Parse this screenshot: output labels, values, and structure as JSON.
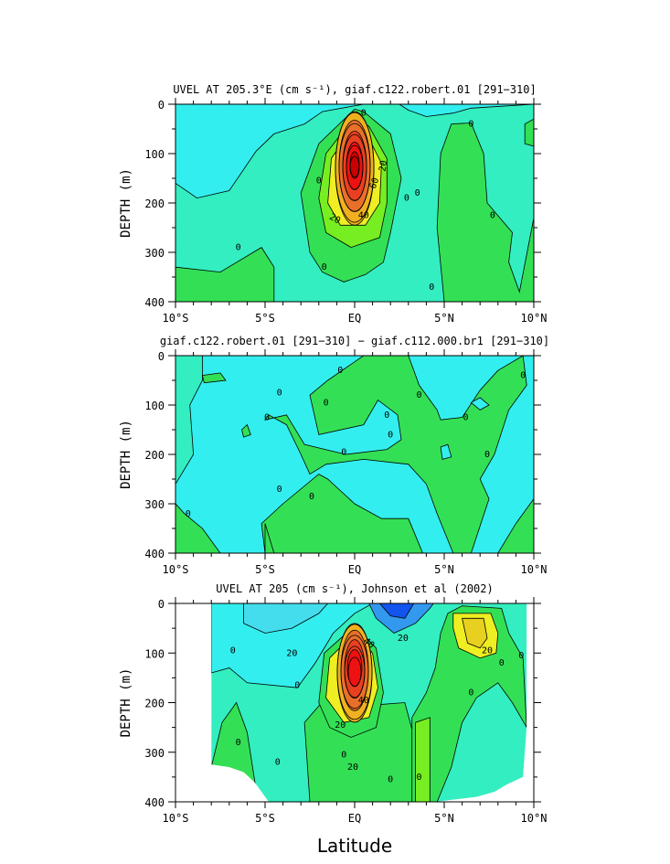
{
  "figure": {
    "xlabel": "Latitude"
  },
  "chart_data": [
    {
      "type": "heatmap",
      "title": "UVEL AT 205.3°E (cm s⁻¹), giaf.c122.robert.01 [291−310]",
      "ylabel": "DEPTH (m)",
      "xlim": [
        -10,
        10
      ],
      "ylim": [
        400,
        0
      ],
      "x_ticks": [
        "10°S",
        "5°S",
        "EQ",
        "5°N",
        "10°N"
      ],
      "y_ticks": [
        "0",
        "100",
        "200",
        "300",
        "400"
      ],
      "contour_labels": [
        "0",
        "0",
        "0",
        "0",
        "0",
        "0",
        "0",
        "0",
        "0",
        "0",
        "20",
        "20",
        "40",
        "40",
        "60"
      ],
      "colors": {
        "light_cyan": "#33eeee",
        "aquamarine": "#33eec0",
        "green": "#33e055",
        "yellow": "#eeee22",
        "red": "#ee1111"
      }
    },
    {
      "type": "heatmap",
      "title": "giaf.c122.robert.01 [291−310] − giaf.c112.000.br1 [291−310]",
      "ylabel": "DEPTH (m)",
      "xlim": [
        -10,
        10
      ],
      "ylim": [
        400,
        0
      ],
      "x_ticks": [
        "10°S",
        "5°S",
        "EQ",
        "5°N",
        "10°N"
      ],
      "y_ticks": [
        "0",
        "100",
        "200",
        "300",
        "400"
      ],
      "contour_labels": [
        "0",
        "0",
        "0",
        "0",
        "0",
        "0",
        "0",
        "0",
        "0",
        "0",
        "0",
        "0",
        "0",
        "0"
      ]
    },
    {
      "type": "heatmap",
      "title": "UVEL AT 205 (cm s⁻¹), Johnson et al (2002)",
      "ylabel": "DEPTH (m)",
      "xlim": [
        -10,
        10
      ],
      "ylim": [
        400,
        0
      ],
      "x_ticks": [
        "10°S",
        "5°S",
        "EQ",
        "5°N",
        "10°N"
      ],
      "y_ticks": [
        "0",
        "100",
        "200",
        "300",
        "400"
      ],
      "contour_labels": [
        "0",
        "0",
        "0",
        "0",
        "0",
        "0",
        "0",
        "0",
        "0",
        "0",
        "20",
        "20",
        "20",
        "20",
        "20",
        "40",
        "40"
      ],
      "colors": {
        "blue": "#1155ee",
        "light_cyan": "#33eeee",
        "aquamarine": "#33eec0",
        "green": "#33e055",
        "yellow": "#eeee22",
        "red": "#ee1111"
      }
    }
  ]
}
